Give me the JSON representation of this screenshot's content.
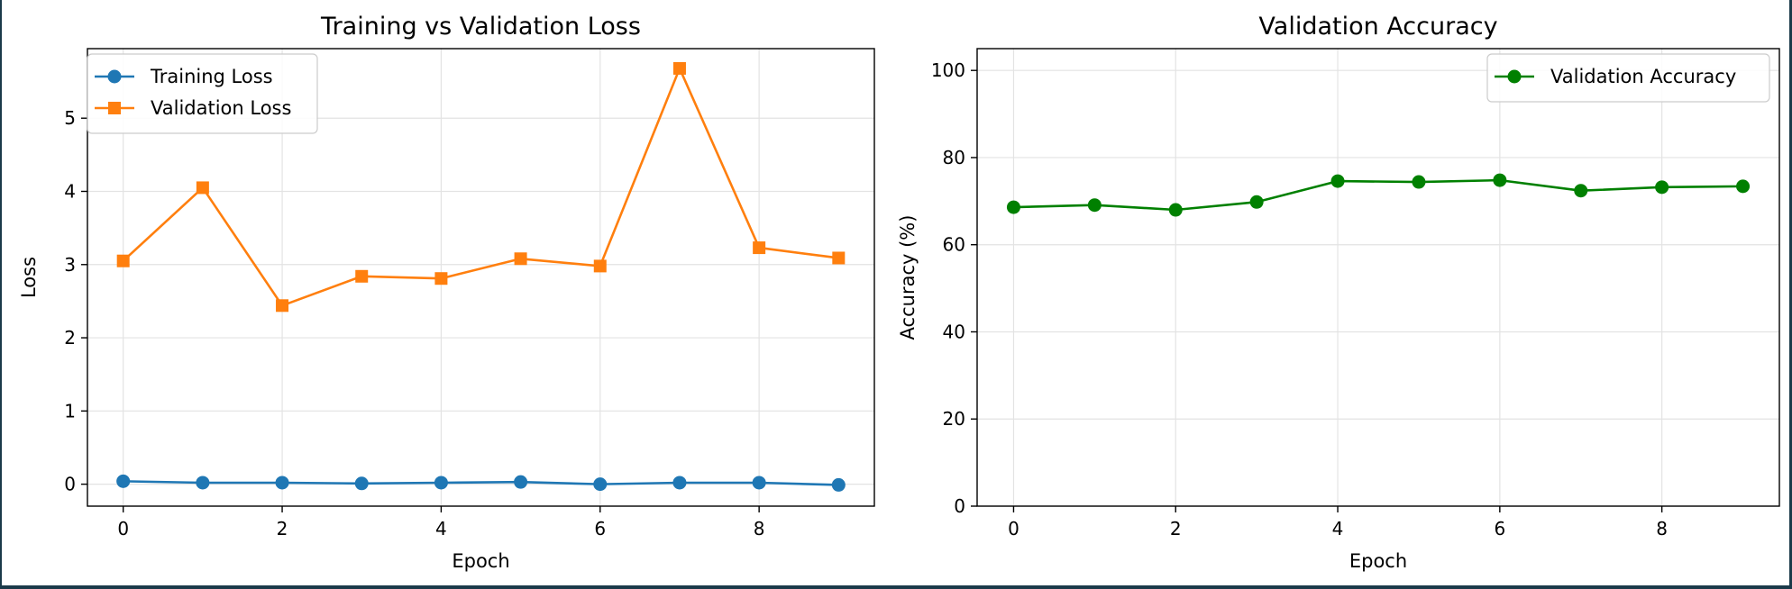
{
  "chart_data": [
    {
      "type": "line",
      "title": "Training vs Validation Loss",
      "xlabel": "Epoch",
      "ylabel": "Loss",
      "xlim": [
        -0.45,
        9.45
      ],
      "ylim": [
        -0.3,
        5.95
      ],
      "xticks": [
        0,
        2,
        4,
        6,
        8
      ],
      "yticks": [
        0,
        1,
        2,
        3,
        4,
        5
      ],
      "grid": true,
      "legend_position": "top-left",
      "x": [
        0,
        1,
        2,
        3,
        4,
        5,
        6,
        7,
        8,
        9
      ],
      "series": [
        {
          "name": "Training Loss",
          "color": "#1f77b4",
          "marker": "circle",
          "values": [
            0.04,
            0.02,
            0.02,
            0.01,
            0.02,
            0.03,
            0.0,
            0.02,
            0.02,
            -0.01
          ]
        },
        {
          "name": "Validation Loss",
          "color": "#ff7f0e",
          "marker": "square",
          "values": [
            3.05,
            4.05,
            2.44,
            2.84,
            2.81,
            3.08,
            2.98,
            5.68,
            3.23,
            3.09
          ]
        }
      ]
    },
    {
      "type": "line",
      "title": "Validation Accuracy",
      "xlabel": "Epoch",
      "ylabel": "Accuracy (%)",
      "xlim": [
        -0.45,
        9.45
      ],
      "ylim": [
        0,
        105
      ],
      "xticks": [
        0,
        2,
        4,
        6,
        8
      ],
      "yticks": [
        0,
        20,
        40,
        60,
        80,
        100
      ],
      "grid": true,
      "legend_position": "top-right",
      "x": [
        0,
        1,
        2,
        3,
        4,
        5,
        6,
        7,
        8,
        9
      ],
      "series": [
        {
          "name": "Validation Accuracy",
          "color": "#008000",
          "marker": "circle",
          "values": [
            68.6,
            69.1,
            68.0,
            69.8,
            74.6,
            74.4,
            74.8,
            72.4,
            73.2,
            73.4
          ]
        }
      ]
    }
  ]
}
